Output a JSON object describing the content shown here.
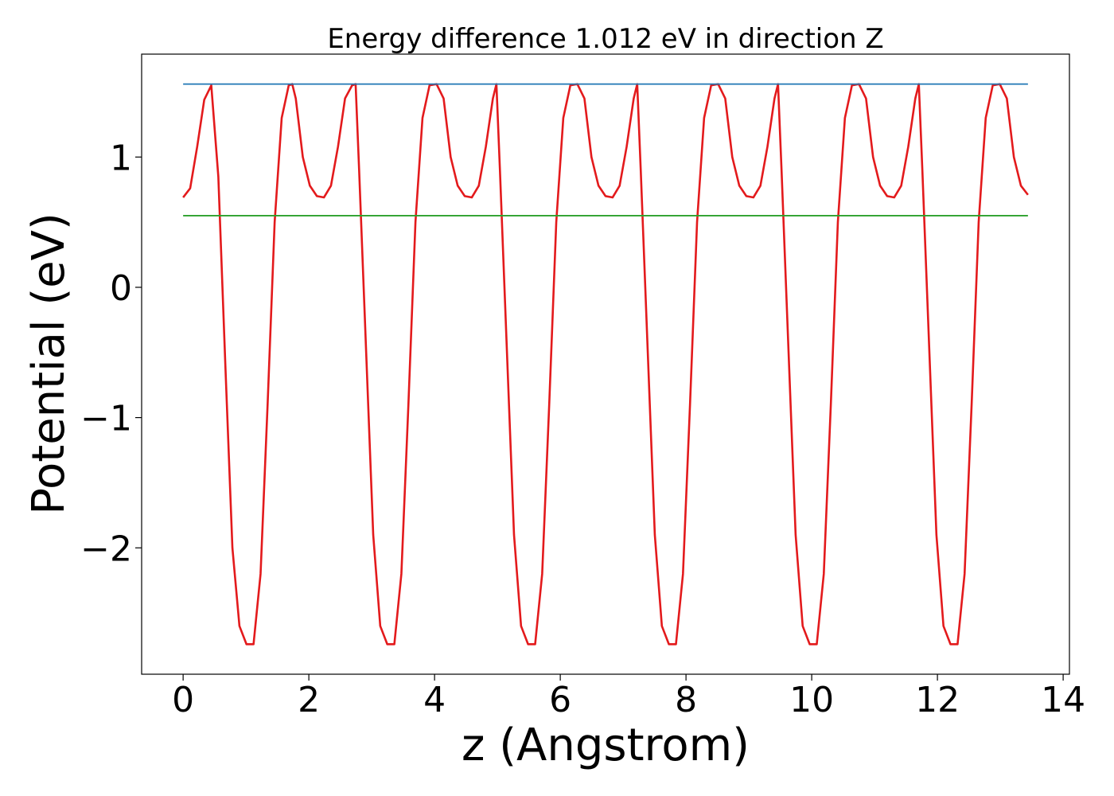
{
  "chart_data": {
    "type": "line",
    "title": "Energy difference 1.012 eV in direction Z",
    "xlabel": "z (Angstrom)",
    "ylabel": "Potential (eV)",
    "xlim": [
      -0.66,
      14.1
    ],
    "ylim": [
      -2.97,
      1.79
    ],
    "xticks": [
      0,
      2,
      4,
      6,
      8,
      10,
      12,
      14
    ],
    "yticks": [
      -2,
      -1,
      0,
      1
    ],
    "grid": false,
    "legend": "none",
    "colors": {
      "potential": "#e31a1c",
      "upper_level": "#1f77b4",
      "lower_level": "#2ca02c"
    },
    "series": [
      {
        "role": "potential",
        "x": [
          0.0,
          0.112,
          0.224,
          0.336,
          0.448,
          0.56,
          0.672,
          0.784,
          0.896,
          1.008,
          1.12,
          1.232,
          1.344,
          1.456,
          1.568,
          1.68,
          1.736,
          1.792,
          1.904,
          2.016,
          2.128,
          2.24,
          2.352,
          2.464,
          2.576,
          2.688,
          2.744,
          2.8,
          2.912,
          3.024,
          3.136,
          3.248,
          3.36,
          3.472,
          3.584,
          3.696,
          3.808,
          3.92,
          4.032,
          4.144,
          4.256,
          4.368,
          4.48,
          4.592,
          4.704,
          4.816,
          4.928,
          4.984,
          5.04,
          5.152,
          5.264,
          5.376,
          5.488,
          5.6,
          5.712,
          5.824,
          5.936,
          6.048,
          6.16,
          6.272,
          6.384,
          6.496,
          6.608,
          6.72,
          6.832,
          6.944,
          7.056,
          7.168,
          7.224,
          7.28,
          7.392,
          7.504,
          7.616,
          7.728,
          7.84,
          7.952,
          8.064,
          8.176,
          8.288,
          8.4,
          8.512,
          8.624,
          8.736,
          8.848,
          8.96,
          9.072,
          9.184,
          9.296,
          9.408,
          9.464,
          9.52,
          9.632,
          9.744,
          9.856,
          9.968,
          10.08,
          10.192,
          10.304,
          10.416,
          10.528,
          10.64,
          10.752,
          10.864,
          10.976,
          11.088,
          11.2,
          11.312,
          11.424,
          11.536,
          11.648,
          11.704,
          11.76,
          11.872,
          11.984,
          12.096,
          12.208,
          12.32,
          12.432,
          12.544,
          12.656,
          12.768,
          12.88,
          12.992,
          13.104,
          13.216,
          13.328,
          13.44
        ],
        "y": [
          0.69,
          0.76,
          1.08,
          1.44,
          1.55,
          0.85,
          -0.6,
          -2.0,
          -2.6,
          -2.74,
          -2.74,
          -2.2,
          -0.9,
          0.5,
          1.3,
          1.55,
          1.56,
          1.45,
          1.0,
          0.78,
          0.7,
          0.69,
          0.78,
          1.08,
          1.45,
          1.55,
          1.56,
          0.9,
          -0.5,
          -1.9,
          -2.6,
          -2.74,
          -2.74,
          -2.2,
          -0.9,
          0.5,
          1.3,
          1.55,
          1.56,
          1.45,
          1.0,
          0.78,
          0.7,
          0.69,
          0.78,
          1.08,
          1.45,
          1.56,
          0.9,
          -0.5,
          -1.9,
          -2.6,
          -2.74,
          -2.74,
          -2.2,
          -0.9,
          0.5,
          1.3,
          1.55,
          1.56,
          1.45,
          1.0,
          0.78,
          0.7,
          0.69,
          0.78,
          1.08,
          1.45,
          1.56,
          0.9,
          -0.5,
          -1.9,
          -2.6,
          -2.74,
          -2.74,
          -2.2,
          -0.9,
          0.5,
          1.3,
          1.55,
          1.56,
          1.45,
          1.0,
          0.78,
          0.7,
          0.69,
          0.78,
          1.08,
          1.45,
          1.56,
          0.9,
          -0.5,
          -1.9,
          -2.6,
          -2.74,
          -2.74,
          -2.2,
          -0.9,
          0.5,
          1.3,
          1.55,
          1.56,
          1.45,
          1.0,
          0.78,
          0.7,
          0.69,
          0.78,
          1.08,
          1.45,
          1.56,
          0.9,
          -0.5,
          -1.9,
          -2.6,
          -2.74,
          -2.74,
          -2.2,
          -0.9,
          0.5,
          1.3,
          1.55,
          1.56,
          1.45,
          1.0,
          0.78,
          0.71
        ]
      },
      {
        "role": "upper_level",
        "x": [
          0.0,
          13.44
        ],
        "y": [
          1.56,
          1.56
        ]
      },
      {
        "role": "lower_level",
        "x": [
          0.0,
          13.44
        ],
        "y": [
          0.55,
          0.55
        ]
      }
    ]
  }
}
